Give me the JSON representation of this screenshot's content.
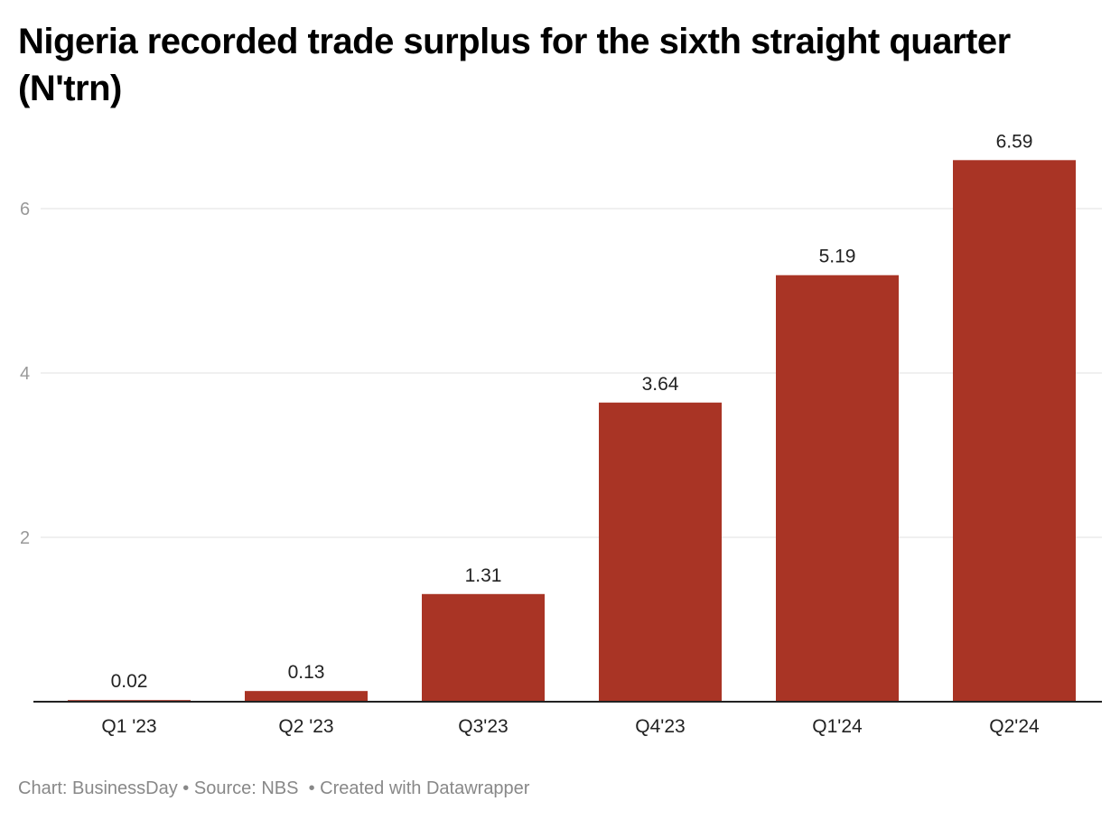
{
  "chart_data": {
    "type": "bar",
    "title": "Nigeria recorded trade surplus for the sixth straight quarter (N'trn)",
    "categories": [
      "Q1 '23",
      "Q2 '23",
      "Q3'23",
      "Q4'23",
      "Q1'24",
      "Q2'24"
    ],
    "values": [
      0.02,
      0.13,
      1.31,
      3.64,
      5.19,
      6.59
    ],
    "value_labels": [
      "0.02",
      "0.13",
      "1.31",
      "3.64",
      "5.19",
      "6.59"
    ],
    "xlabel": "",
    "ylabel": "",
    "ylim": [
      0,
      6.6
    ],
    "yticks": [
      2,
      4,
      6
    ],
    "grid": true,
    "bar_color": "#a93425"
  },
  "footer": "Chart: BusinessDay • Source: NBS  • Created with Datawrapper"
}
